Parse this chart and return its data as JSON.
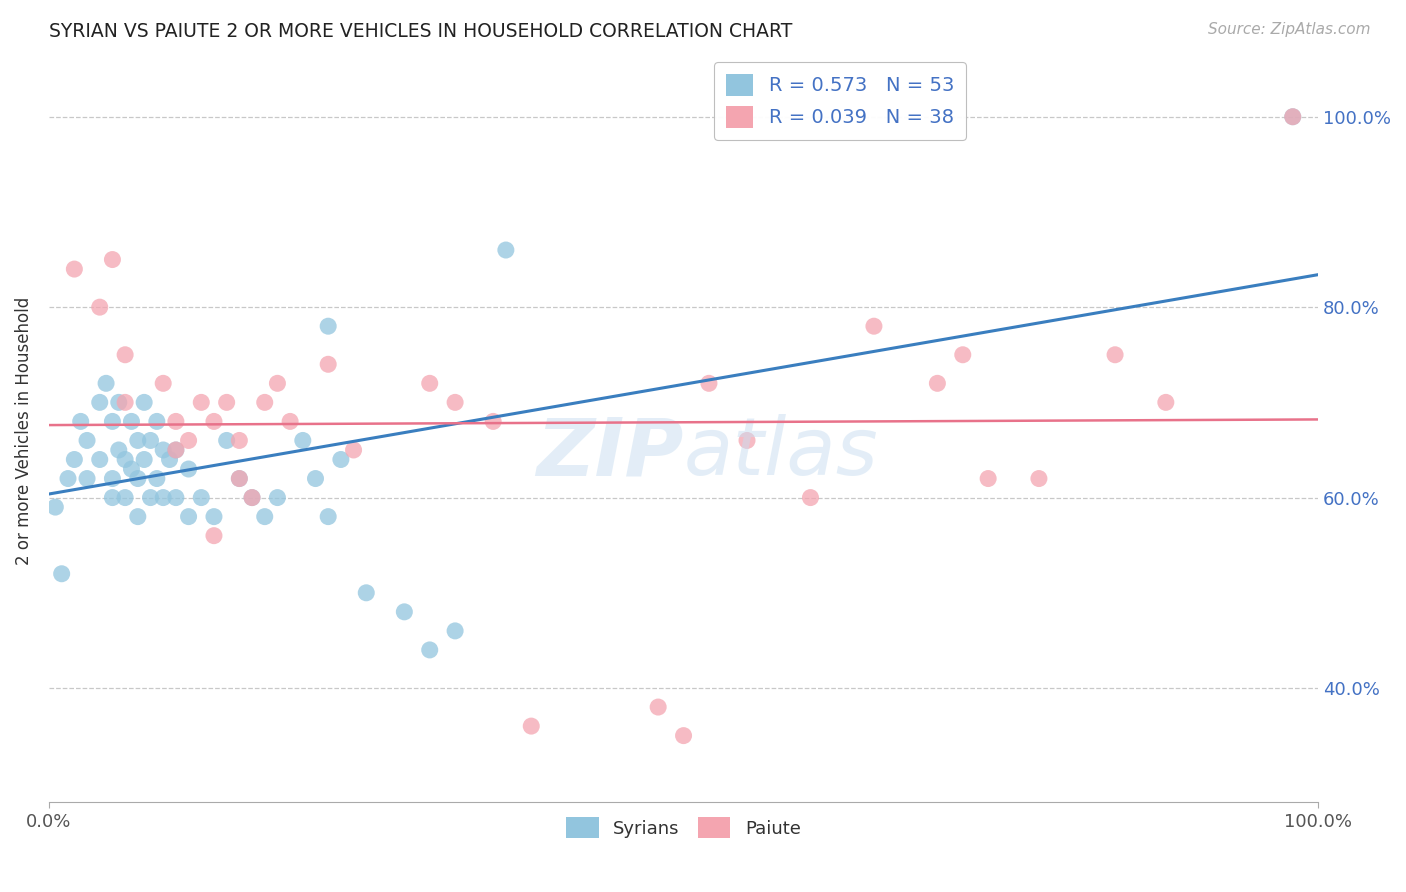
{
  "title": "SYRIAN VS PAIUTE 2 OR MORE VEHICLES IN HOUSEHOLD CORRELATION CHART",
  "source_text": "Source: ZipAtlas.com",
  "ylabel": "2 or more Vehicles in Household",
  "xlim": [
    0,
    1
  ],
  "ylim": [
    0.28,
    1.06
  ],
  "xtick_positions": [
    0.0,
    1.0
  ],
  "xtick_labels": [
    "0.0%",
    "100.0%"
  ],
  "ytick_values": [
    0.4,
    0.6,
    0.8,
    1.0
  ],
  "ytick_labels": [
    "40.0%",
    "60.0%",
    "80.0%",
    "100.0%"
  ],
  "legend_labels": [
    "Syrians",
    "Paiute"
  ],
  "syrian_color": "#92c5de",
  "paiute_color": "#f4a5b0",
  "syrian_line_color": "#3a7ebf",
  "paiute_line_color": "#e8728a",
  "ytick_color": "#4472c4",
  "xtick_color": "#555555",
  "syrian_x": [
    0.005,
    0.01,
    0.015,
    0.02,
    0.025,
    0.03,
    0.03,
    0.04,
    0.04,
    0.045,
    0.05,
    0.05,
    0.05,
    0.055,
    0.055,
    0.06,
    0.06,
    0.065,
    0.065,
    0.07,
    0.07,
    0.07,
    0.075,
    0.075,
    0.08,
    0.08,
    0.085,
    0.085,
    0.09,
    0.09,
    0.095,
    0.1,
    0.1,
    0.11,
    0.11,
    0.12,
    0.13,
    0.14,
    0.15,
    0.16,
    0.17,
    0.18,
    0.2,
    0.21,
    0.22,
    0.23,
    0.25,
    0.28,
    0.3,
    0.32,
    0.22,
    0.36,
    0.98
  ],
  "syrian_y": [
    0.59,
    0.52,
    0.62,
    0.64,
    0.68,
    0.66,
    0.62,
    0.7,
    0.64,
    0.72,
    0.68,
    0.62,
    0.6,
    0.65,
    0.7,
    0.64,
    0.6,
    0.68,
    0.63,
    0.66,
    0.62,
    0.58,
    0.64,
    0.7,
    0.6,
    0.66,
    0.62,
    0.68,
    0.6,
    0.65,
    0.64,
    0.6,
    0.65,
    0.58,
    0.63,
    0.6,
    0.58,
    0.66,
    0.62,
    0.6,
    0.58,
    0.6,
    0.66,
    0.62,
    0.58,
    0.64,
    0.5,
    0.48,
    0.44,
    0.46,
    0.78,
    0.86,
    1.0
  ],
  "paiute_x": [
    0.02,
    0.04,
    0.05,
    0.06,
    0.06,
    0.09,
    0.1,
    0.11,
    0.12,
    0.13,
    0.14,
    0.15,
    0.15,
    0.17,
    0.18,
    0.19,
    0.22,
    0.24,
    0.3,
    0.32,
    0.35,
    0.38,
    0.48,
    0.52,
    0.55,
    0.6,
    0.65,
    0.7,
    0.72,
    0.74,
    0.78,
    0.84,
    0.88,
    0.98,
    0.5,
    0.1,
    0.13,
    0.16
  ],
  "paiute_y": [
    0.84,
    0.8,
    0.85,
    0.7,
    0.75,
    0.72,
    0.68,
    0.66,
    0.7,
    0.68,
    0.7,
    0.62,
    0.66,
    0.7,
    0.72,
    0.68,
    0.74,
    0.65,
    0.72,
    0.7,
    0.68,
    0.36,
    0.38,
    0.72,
    0.66,
    0.6,
    0.78,
    0.72,
    0.75,
    0.62,
    0.62,
    0.75,
    0.7,
    1.0,
    0.35,
    0.65,
    0.56,
    0.6
  ]
}
